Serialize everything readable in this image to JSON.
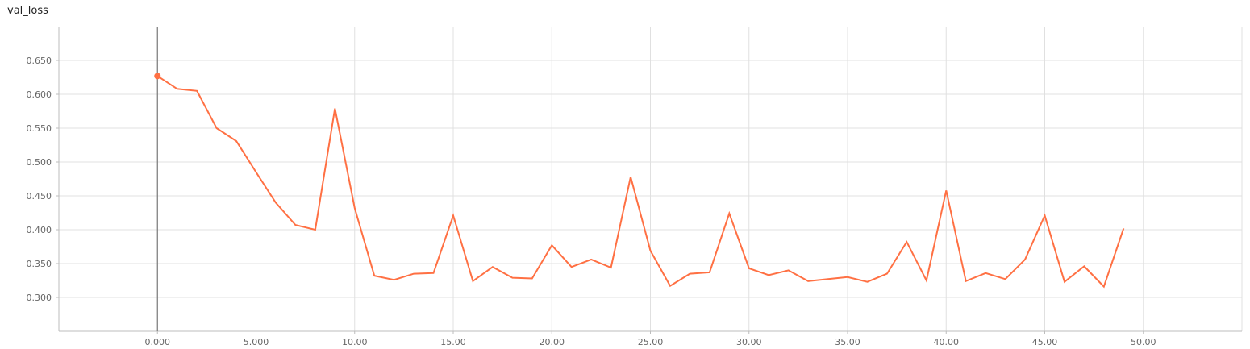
{
  "chart_data": {
    "type": "line",
    "title": "val_loss",
    "xlabel": "",
    "ylabel": "",
    "xlim": [
      -5,
      55
    ],
    "ylim": [
      0.25,
      0.7
    ],
    "grid": true,
    "x_ticks": [
      0,
      5,
      10,
      15,
      20,
      25,
      30,
      35,
      40,
      45,
      50
    ],
    "x_tick_labels": [
      "0.000",
      "5.000",
      "10.00",
      "15.00",
      "20.00",
      "25.00",
      "30.00",
      "35.00",
      "40.00",
      "45.00",
      "50.00"
    ],
    "y_ticks": [
      0.3,
      0.35,
      0.4,
      0.45,
      0.5,
      0.55,
      0.6,
      0.65
    ],
    "y_tick_labels": [
      "0.300",
      "0.350",
      "0.400",
      "0.450",
      "0.500",
      "0.550",
      "0.600",
      "0.650"
    ],
    "cursor_x": 0,
    "highlight_point": {
      "x": 0,
      "y": 0.627
    },
    "line_color": "#ff7043",
    "series": [
      {
        "x": [
          0,
          1,
          2,
          3,
          4,
          5,
          6,
          7,
          8,
          9,
          10,
          11,
          12,
          13,
          14,
          15,
          16,
          17,
          18,
          19,
          20,
          21,
          22,
          23,
          24,
          25,
          26,
          27,
          28,
          29,
          30,
          31,
          32,
          33,
          34,
          35,
          36,
          37,
          38,
          39,
          40,
          41,
          42,
          43,
          44,
          45,
          46,
          47,
          48,
          49
        ],
        "values": [
          0.627,
          0.608,
          0.605,
          0.55,
          0.531,
          0.485,
          0.44,
          0.407,
          0.4,
          0.579,
          0.432,
          0.332,
          0.326,
          0.335,
          0.336,
          0.421,
          0.324,
          0.345,
          0.329,
          0.328,
          0.377,
          0.345,
          0.356,
          0.344,
          0.478,
          0.369,
          0.317,
          0.335,
          0.337,
          0.424,
          0.343,
          0.333,
          0.34,
          0.324,
          0.327,
          0.33,
          0.323,
          0.335,
          0.382,
          0.325,
          0.458,
          0.324,
          0.336,
          0.327,
          0.356,
          0.421,
          0.323,
          0.346,
          0.316,
          0.402
        ]
      }
    ]
  }
}
